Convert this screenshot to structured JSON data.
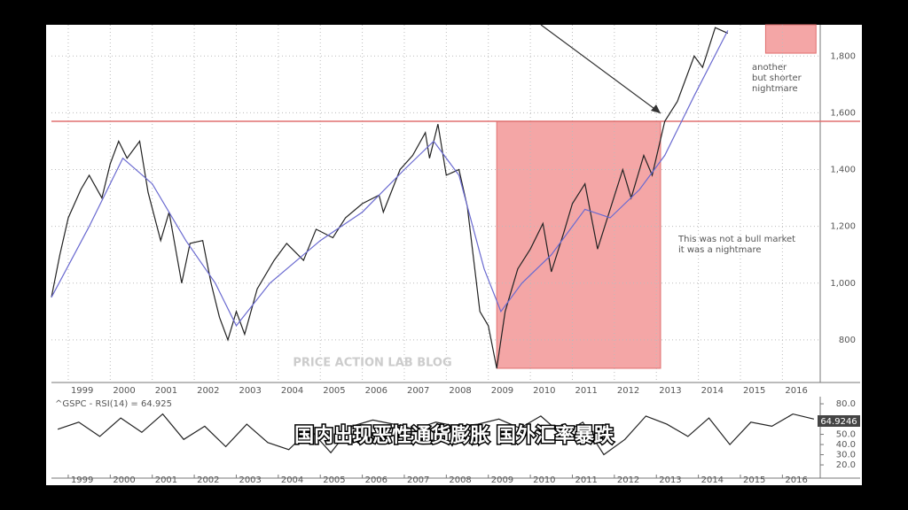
{
  "chart_data": [
    {
      "type": "line",
      "xlim": [
        1998.6,
        2016.9
      ],
      "xticks": [
        1999,
        2000,
        2001,
        2002,
        2003,
        2004,
        2005,
        2006,
        2007,
        2008,
        2009,
        2010,
        2011,
        2012,
        2013,
        2014,
        2015,
        2016
      ],
      "ylim": [
        650,
        1910
      ],
      "yticks": [
        800,
        {
          "value": 1000,
          "label": "1,000"
        },
        {
          "value": 1200,
          "label": "1,200"
        },
        {
          "value": 1400,
          "label": "1,400"
        },
        {
          "value": 1600,
          "label": "1,600"
        },
        {
          "value": 1800,
          "label": "1,800"
        }
      ],
      "grid": true,
      "series": [
        {
          "color": "#222222",
          "x": [
            1998.6,
            1998.8,
            1999.0,
            1999.3,
            1999.5,
            1999.8,
            2000.0,
            2000.2,
            2000.4,
            2000.7,
            2000.9,
            2001.2,
            2001.4,
            2001.7,
            2001.9,
            2002.2,
            2002.4,
            2002.6,
            2002.8,
            2003.0,
            2003.2,
            2003.5,
            2003.9,
            2004.2,
            2004.6,
            2004.9,
            2005.3,
            2005.6,
            2006.0,
            2006.4,
            2006.5,
            2006.9,
            2007.2,
            2007.5,
            2007.6,
            2007.8,
            2008.0,
            2008.3,
            2008.5,
            2008.8,
            2009.0,
            2009.2,
            2009.4,
            2009.7,
            2010.0,
            2010.3,
            2010.5,
            2010.8,
            2011.0,
            2011.3,
            2011.6,
            2011.9,
            2012.2,
            2012.4,
            2012.7,
            2012.9,
            2013.2,
            2013.5,
            2013.9,
            2014.1,
            2014.4,
            2014.7
          ],
          "values": [
            950,
            1100,
            1230,
            1330,
            1380,
            1300,
            1420,
            1500,
            1440,
            1500,
            1320,
            1150,
            1250,
            1000,
            1140,
            1150,
            1000,
            880,
            800,
            900,
            820,
            980,
            1080,
            1140,
            1080,
            1190,
            1160,
            1230,
            1280,
            1310,
            1250,
            1400,
            1450,
            1530,
            1440,
            1560,
            1380,
            1400,
            1270,
            900,
            850,
            700,
            900,
            1050,
            1120,
            1210,
            1040,
            1180,
            1280,
            1350,
            1120,
            1260,
            1400,
            1300,
            1450,
            1380,
            1570,
            1640,
            1800,
            1760,
            1900,
            1880
          ]
        },
        {
          "color": "#6a6ad0",
          "x": [
            1998.6,
            1999.5,
            2000.3,
            2001.0,
            2001.8,
            2002.5,
            2003.0,
            2003.8,
            2005.0,
            2006.0,
            2007.0,
            2007.7,
            2008.3,
            2008.9,
            2009.3,
            2009.8,
            2010.5,
            2011.3,
            2011.9,
            2012.6,
            2013.2,
            2013.9,
            2014.7
          ],
          "values": [
            950,
            1200,
            1440,
            1350,
            1150,
            1000,
            850,
            1000,
            1150,
            1250,
            1400,
            1500,
            1380,
            1050,
            900,
            1000,
            1100,
            1260,
            1230,
            1330,
            1450,
            1660,
            1890
          ]
        }
      ],
      "hlines": [
        {
          "value": 1570,
          "color": "#e07070"
        }
      ],
      "regions": [
        {
          "x": [
            2009.2,
            2013.1
          ],
          "y": [
            700,
            1570
          ],
          "color": "#f4a6a6"
        },
        {
          "x": [
            2015.6,
            2016.8
          ],
          "y": [
            1810,
            1910
          ],
          "color": "#f4a6a6"
        }
      ],
      "annotations": [
        "This was not a bull market\nit was a nightmare",
        "another\nbut shorter\nnightmare",
        "PRICE ACTION LAB BLOG"
      ]
    },
    {
      "type": "line",
      "title": "^GSPC - RSI(14) = 64.925",
      "xlim": [
        1998.6,
        2016.9
      ],
      "xticks": [
        1999,
        2000,
        2001,
        2002,
        2003,
        2004,
        2005,
        2006,
        2007,
        2008,
        2009,
        2010,
        2011,
        2012,
        2013,
        2014,
        2015,
        2016
      ],
      "ylim": [
        7,
        87
      ],
      "yticks": [
        {
          "value": 20,
          "label": "20.0"
        },
        {
          "value": 30,
          "label": "30.0"
        },
        {
          "value": 40,
          "label": "40.0"
        },
        {
          "value": 50,
          "label": "50.0"
        },
        {
          "value": 80,
          "label": "80.0"
        }
      ],
      "last_value_label": "64.9246",
      "series": [
        {
          "color": "#222222",
          "x": [
            1998.75,
            1999.25,
            1999.75,
            2000.25,
            2000.75,
            2001.25,
            2001.75,
            2002.25,
            2002.75,
            2003.25,
            2003.75,
            2004.25,
            2004.75,
            2005.25,
            2005.75,
            2006.25,
            2006.75,
            2007.25,
            2007.75,
            2008.25,
            2008.75,
            2009.25,
            2009.75,
            2010.25,
            2010.75,
            2011.25,
            2011.75,
            2012.25,
            2012.75,
            2013.25,
            2013.75,
            2014.25,
            2014.75,
            2015.25,
            2015.75,
            2016.25,
            2016.75
          ],
          "values": [
            55,
            62,
            48,
            66,
            52,
            70,
            45,
            58,
            38,
            60,
            42,
            35,
            55,
            32,
            58,
            64,
            60,
            55,
            62,
            58,
            60,
            65,
            56,
            68,
            50,
            62,
            30,
            45,
            68,
            60,
            48,
            66,
            40,
            62,
            58,
            70,
            65
          ]
        }
      ]
    }
  ],
  "caption": "国内出现恶性通货膨胀 国外汇率暴跌"
}
